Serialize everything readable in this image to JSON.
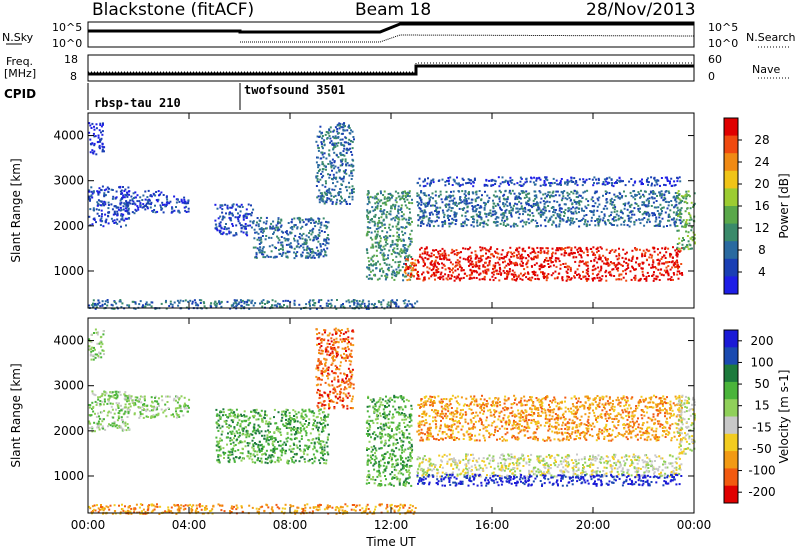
{
  "header": {
    "station": "Blackstone (fitACF)",
    "beam": "Beam 18",
    "date": "28/Nov/2013"
  },
  "strip_labels": {
    "nsky": "N.Sky",
    "nsearch": "N.Search",
    "freq_line1": "Freq.",
    "freq_line2": "[MHz]",
    "nave": "Nave",
    "cpid": "CPID",
    "nsky_ticks": [
      "10^5",
      "10^0"
    ],
    "nsearch_ticks": [
      "10^5",
      "10^0"
    ],
    "freq_ticks": [
      "18",
      "8"
    ],
    "nave_ticks": [
      "60",
      "0"
    ]
  },
  "cpid_segments": [
    {
      "label": "rbsp-tau 210",
      "start_hour": 0
    },
    {
      "label": "twofsound 3501",
      "start_hour": 6
    }
  ],
  "colors": {
    "power_scale": [
      "#1e1ee6",
      "#1a3fb4",
      "#2a6aa0",
      "#3a8a6a",
      "#5aa84a",
      "#9ccc32",
      "#f0c418",
      "#f08a14",
      "#f04a10",
      "#e00000"
    ],
    "velocity_scale": [
      "#1a1ad6",
      "#1a4ab0",
      "#1c7a3c",
      "#4ab43a",
      "#90d05a",
      "#c8c8c8",
      "#f2cc20",
      "#f29a14",
      "#f25a10",
      "#e00000"
    ]
  },
  "chart_data": [
    {
      "type": "heatmap",
      "name": "power-panel",
      "ylabel": "Slant Range [km]",
      "colorbar_label": "Power [dB]",
      "colorbar_ticks": [
        "4",
        "8",
        "12",
        "16",
        "20",
        "24",
        "28"
      ],
      "yticks": [
        "1000",
        "2000",
        "3000",
        "4000"
      ],
      "ylim": [
        180,
        4500
      ],
      "xlim_hours": [
        0,
        24
      ],
      "blobs": [
        {
          "t": [
            0.0,
            1.6
          ],
          "r": [
            2000,
            2900
          ],
          "level": 1
        },
        {
          "t": [
            0.0,
            0.6
          ],
          "r": [
            3600,
            4300
          ],
          "level": 0
        },
        {
          "t": [
            1.4,
            3.0
          ],
          "r": [
            2300,
            2800
          ],
          "level": 1
        },
        {
          "t": [
            3.0,
            4.0
          ],
          "r": [
            2300,
            2700
          ],
          "level": 1
        },
        {
          "t": [
            5.0,
            6.5
          ],
          "r": [
            1800,
            2500
          ],
          "level": 1
        },
        {
          "t": [
            6.5,
            9.5
          ],
          "r": [
            1300,
            2200
          ],
          "level": 2
        },
        {
          "t": [
            9.0,
            10.5
          ],
          "r": [
            2500,
            4300
          ],
          "level": 2
        },
        {
          "t": [
            11.0,
            12.8
          ],
          "r": [
            800,
            2800
          ],
          "level": 3
        },
        {
          "t": [
            12.5,
            13.0
          ],
          "r": [
            800,
            1300
          ],
          "level": 8
        },
        {
          "t": [
            13.0,
            23.5
          ],
          "r": [
            800,
            1550
          ],
          "level": 9
        },
        {
          "t": [
            13.0,
            23.5
          ],
          "r": [
            2000,
            2800
          ],
          "level": 2
        },
        {
          "t": [
            13.0,
            23.5
          ],
          "r": [
            2900,
            3100
          ],
          "level": 1
        },
        {
          "t": [
            23.3,
            24.0
          ],
          "r": [
            1500,
            2800
          ],
          "level": 4
        },
        {
          "t": [
            0.0,
            13.0
          ],
          "r": [
            180,
            380
          ],
          "level": 2
        }
      ]
    },
    {
      "type": "heatmap",
      "name": "velocity-panel",
      "ylabel": "Slant Range [km]",
      "colorbar_label": "Velocity [m s-1]",
      "colorbar_ticks": [
        "200",
        "100",
        "50",
        "15",
        "-15",
        "-50",
        "-100",
        "-200"
      ],
      "yticks": [
        "1000",
        "2000",
        "3000",
        "4000"
      ],
      "ylim": [
        180,
        4500
      ],
      "xlim_hours": [
        0,
        24
      ],
      "xticks": [
        "00:00",
        "04:00",
        "08:00",
        "12:00",
        "16:00",
        "20:00",
        "00:00"
      ],
      "xlabel": "Time UT",
      "blobs": [
        {
          "t": [
            0.0,
            1.6
          ],
          "r": [
            2000,
            2900
          ],
          "level": 4
        },
        {
          "t": [
            0.0,
            0.6
          ],
          "r": [
            3600,
            4300
          ],
          "level": 4
        },
        {
          "t": [
            1.4,
            4.0
          ],
          "r": [
            2300,
            2800
          ],
          "level": 4
        },
        {
          "t": [
            5.0,
            9.5
          ],
          "r": [
            1300,
            2500
          ],
          "level": 3
        },
        {
          "t": [
            9.0,
            10.5
          ],
          "r": [
            2500,
            4300
          ],
          "level": 8
        },
        {
          "t": [
            11.0,
            12.8
          ],
          "r": [
            800,
            2800
          ],
          "level": 3
        },
        {
          "t": [
            13.0,
            23.5
          ],
          "r": [
            1000,
            1500
          ],
          "level": 5
        },
        {
          "t": [
            13.0,
            23.5
          ],
          "r": [
            800,
            1050
          ],
          "level": 0
        },
        {
          "t": [
            13.0,
            23.5
          ],
          "r": [
            1800,
            2800
          ],
          "level": 7
        },
        {
          "t": [
            23.3,
            24.0
          ],
          "r": [
            1500,
            2800
          ],
          "level": 5
        },
        {
          "t": [
            0.0,
            13.0
          ],
          "r": [
            180,
            400
          ],
          "level": 7
        }
      ]
    }
  ]
}
